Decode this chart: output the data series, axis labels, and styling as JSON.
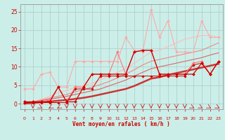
{
  "bg_color": "#cceee8",
  "grid_color": "#aacccc",
  "xlabel": "Vent moyen/en rafales ( km/h )",
  "yticks": [
    0,
    5,
    10,
    15,
    20,
    25
  ],
  "ylim": [
    -1.5,
    27
  ],
  "xlim": [
    -0.5,
    23.5
  ],
  "series": [
    {
      "x": [
        0,
        1,
        2,
        3,
        4,
        5,
        6,
        7,
        8,
        9,
        10,
        11,
        12,
        13,
        14,
        15,
        16,
        17,
        18,
        19,
        20,
        21,
        22,
        23
      ],
      "y": [
        4.0,
        4.0,
        8.0,
        8.5,
        4.5,
        4.5,
        11.5,
        11.5,
        11.5,
        11.5,
        11.5,
        11.5,
        18.0,
        14.5,
        14.0,
        25.5,
        18.0,
        22.5,
        14.0,
        14.0,
        14.0,
        22.5,
        18.0,
        18.0
      ],
      "color": "#ffaaaa",
      "lw": 0.8,
      "marker": "D",
      "ms": 2.0,
      "zorder": 3
    },
    {
      "x": [
        0,
        1,
        2,
        3,
        4,
        5,
        6,
        7,
        8,
        9,
        10,
        11,
        12,
        13,
        14,
        15,
        16,
        17,
        18,
        19,
        20,
        21,
        22,
        23
      ],
      "y": [
        0.5,
        0.5,
        0.5,
        1.0,
        4.5,
        0.5,
        4.5,
        4.5,
        8.0,
        8.0,
        8.0,
        14.0,
        8.0,
        14.0,
        14.5,
        14.5,
        8.0,
        8.0,
        8.0,
        8.0,
        11.0,
        11.5,
        8.0,
        11.5
      ],
      "color": "#ff7777",
      "lw": 0.8,
      "marker": "D",
      "ms": 2.0,
      "zorder": 3
    },
    {
      "x": [
        0,
        1,
        2,
        3,
        4,
        5,
        6,
        7,
        8,
        9,
        10,
        11,
        12,
        13,
        14,
        15,
        16,
        17,
        18,
        19,
        20,
        21,
        22,
        23
      ],
      "y": [
        0.0,
        0.6,
        1.2,
        2.0,
        3.0,
        3.5,
        4.5,
        5.0,
        5.5,
        6.5,
        7.5,
        8.5,
        9.5,
        11.0,
        12.5,
        14.0,
        14.5,
        15.5,
        16.5,
        17.5,
        18.0,
        18.5,
        18.5,
        18.0
      ],
      "color": "#ffbbbb",
      "lw": 0.8,
      "marker": null,
      "ms": 0,
      "zorder": 2
    },
    {
      "x": [
        0,
        1,
        2,
        3,
        4,
        5,
        6,
        7,
        8,
        9,
        10,
        11,
        12,
        13,
        14,
        15,
        16,
        17,
        18,
        19,
        20,
        21,
        22,
        23
      ],
      "y": [
        0.0,
        0.5,
        1.0,
        1.5,
        2.0,
        2.5,
        3.2,
        3.8,
        4.5,
        5.2,
        6.0,
        7.0,
        8.0,
        9.2,
        10.5,
        11.5,
        12.0,
        12.5,
        13.0,
        13.5,
        14.0,
        14.5,
        15.5,
        16.5
      ],
      "color": "#ee8888",
      "lw": 0.8,
      "marker": null,
      "ms": 0,
      "zorder": 2
    },
    {
      "x": [
        0,
        1,
        2,
        3,
        4,
        5,
        6,
        7,
        8,
        9,
        10,
        11,
        12,
        13,
        14,
        15,
        16,
        17,
        18,
        19,
        20,
        21,
        22,
        23
      ],
      "y": [
        0.0,
        0.4,
        0.8,
        1.2,
        1.6,
        2.0,
        2.5,
        3.0,
        3.5,
        4.0,
        4.8,
        5.6,
        6.4,
        7.5,
        8.5,
        9.5,
        10.0,
        10.5,
        11.0,
        11.5,
        12.0,
        12.5,
        13.2,
        13.8
      ],
      "color": "#dd6666",
      "lw": 0.8,
      "marker": null,
      "ms": 0,
      "zorder": 2
    },
    {
      "x": [
        0,
        1,
        2,
        3,
        4,
        5,
        6,
        7,
        8,
        9,
        10,
        11,
        12,
        13,
        14,
        15,
        16,
        17,
        18,
        19,
        20,
        21,
        22,
        23
      ],
      "y": [
        0.0,
        0.2,
        0.4,
        0.6,
        0.8,
        1.0,
        1.3,
        1.6,
        2.0,
        2.5,
        3.0,
        3.5,
        4.0,
        4.8,
        5.8,
        6.8,
        7.2,
        7.8,
        8.3,
        8.8,
        9.3,
        9.8,
        10.3,
        10.8
      ],
      "color": "#cc3333",
      "lw": 1.8,
      "marker": null,
      "ms": 0,
      "zorder": 2
    },
    {
      "x": [
        0,
        1,
        2,
        3,
        4,
        5,
        6,
        7,
        8,
        9,
        10,
        11,
        12,
        13,
        14,
        15,
        16,
        17,
        18,
        19,
        20,
        21,
        22,
        23
      ],
      "y": [
        0.5,
        0.5,
        0.5,
        0.5,
        4.5,
        0.5,
        0.5,
        4.5,
        8.0,
        8.0,
        8.0,
        8.0,
        8.0,
        14.0,
        14.5,
        14.5,
        8.0,
        8.0,
        8.0,
        8.0,
        8.0,
        11.0,
        8.0,
        11.5
      ],
      "color": "#cc0000",
      "lw": 0.9,
      "marker": "D",
      "ms": 2.0,
      "zorder": 4
    },
    {
      "x": [
        0,
        1,
        2,
        3,
        4,
        5,
        6,
        7,
        8,
        9,
        10,
        11,
        12,
        13,
        14,
        15,
        16,
        17,
        18,
        19,
        20,
        21,
        22,
        23
      ],
      "y": [
        0.3,
        0.3,
        0.3,
        0.3,
        0.3,
        0.3,
        4.0,
        4.0,
        4.0,
        7.5,
        7.5,
        7.5,
        7.5,
        7.5,
        7.5,
        7.5,
        7.5,
        7.5,
        7.5,
        7.5,
        10.5,
        11.0,
        8.0,
        11.5
      ],
      "color": "#cc0000",
      "lw": 0.7,
      "marker": "D",
      "ms": 1.8,
      "zorder": 4
    }
  ],
  "wind_arrows_x": [
    1,
    2,
    3,
    4,
    5,
    6,
    7,
    8,
    9,
    10,
    11,
    12,
    13,
    14,
    15,
    16,
    17,
    18,
    19,
    20,
    21,
    22,
    23
  ],
  "wind_angles": [
    0,
    45,
    315,
    315,
    0,
    0,
    0,
    0,
    0,
    0,
    0,
    0,
    0,
    0,
    0,
    0,
    0,
    0,
    0,
    45,
    45,
    45,
    45
  ]
}
